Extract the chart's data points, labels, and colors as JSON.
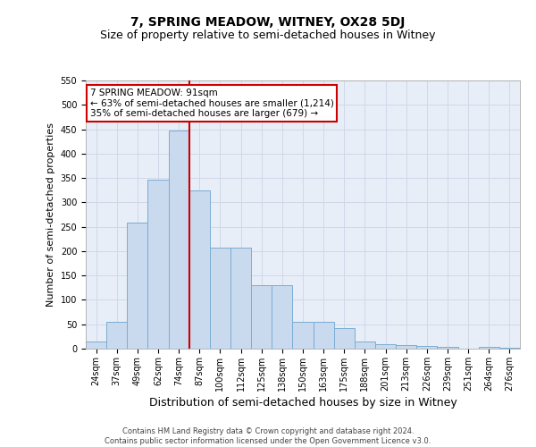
{
  "title": "7, SPRING MEADOW, WITNEY, OX28 5DJ",
  "subtitle": "Size of property relative to semi-detached houses in Witney",
  "xlabel": "Distribution of semi-detached houses by size in Witney",
  "ylabel": "Number of semi-detached properties",
  "categories": [
    "24sqm",
    "37sqm",
    "49sqm",
    "62sqm",
    "74sqm",
    "87sqm",
    "100sqm",
    "112sqm",
    "125sqm",
    "138sqm",
    "150sqm",
    "163sqm",
    "175sqm",
    "188sqm",
    "201sqm",
    "213sqm",
    "226sqm",
    "239sqm",
    "251sqm",
    "264sqm",
    "276sqm"
  ],
  "values": [
    15,
    55,
    258,
    347,
    448,
    325,
    207,
    207,
    130,
    130,
    55,
    55,
    42,
    15,
    10,
    7,
    5,
    3,
    0,
    3,
    2
  ],
  "bar_color": "#c9d9ee",
  "bar_edge_color": "#7aadd4",
  "vline_x_index": 5,
  "annotation_text": "7 SPRING MEADOW: 91sqm\n← 63% of semi-detached houses are smaller (1,214)\n35% of semi-detached houses are larger (679) →",
  "annotation_box_color": "#ffffff",
  "annotation_box_edge": "#cc0000",
  "vline_color": "#cc0000",
  "ylim": [
    0,
    550
  ],
  "yticks": [
    0,
    50,
    100,
    150,
    200,
    250,
    300,
    350,
    400,
    450,
    500,
    550
  ],
  "grid_color": "#d0d8e8",
  "background_color": "#e8eef8",
  "footer_text": "Contains HM Land Registry data © Crown copyright and database right 2024.\nContains public sector information licensed under the Open Government Licence v3.0.",
  "title_fontsize": 10,
  "subtitle_fontsize": 9,
  "ylabel_fontsize": 8,
  "xlabel_fontsize": 9,
  "tick_fontsize": 7,
  "footer_fontsize": 6,
  "annot_fontsize": 7.5
}
